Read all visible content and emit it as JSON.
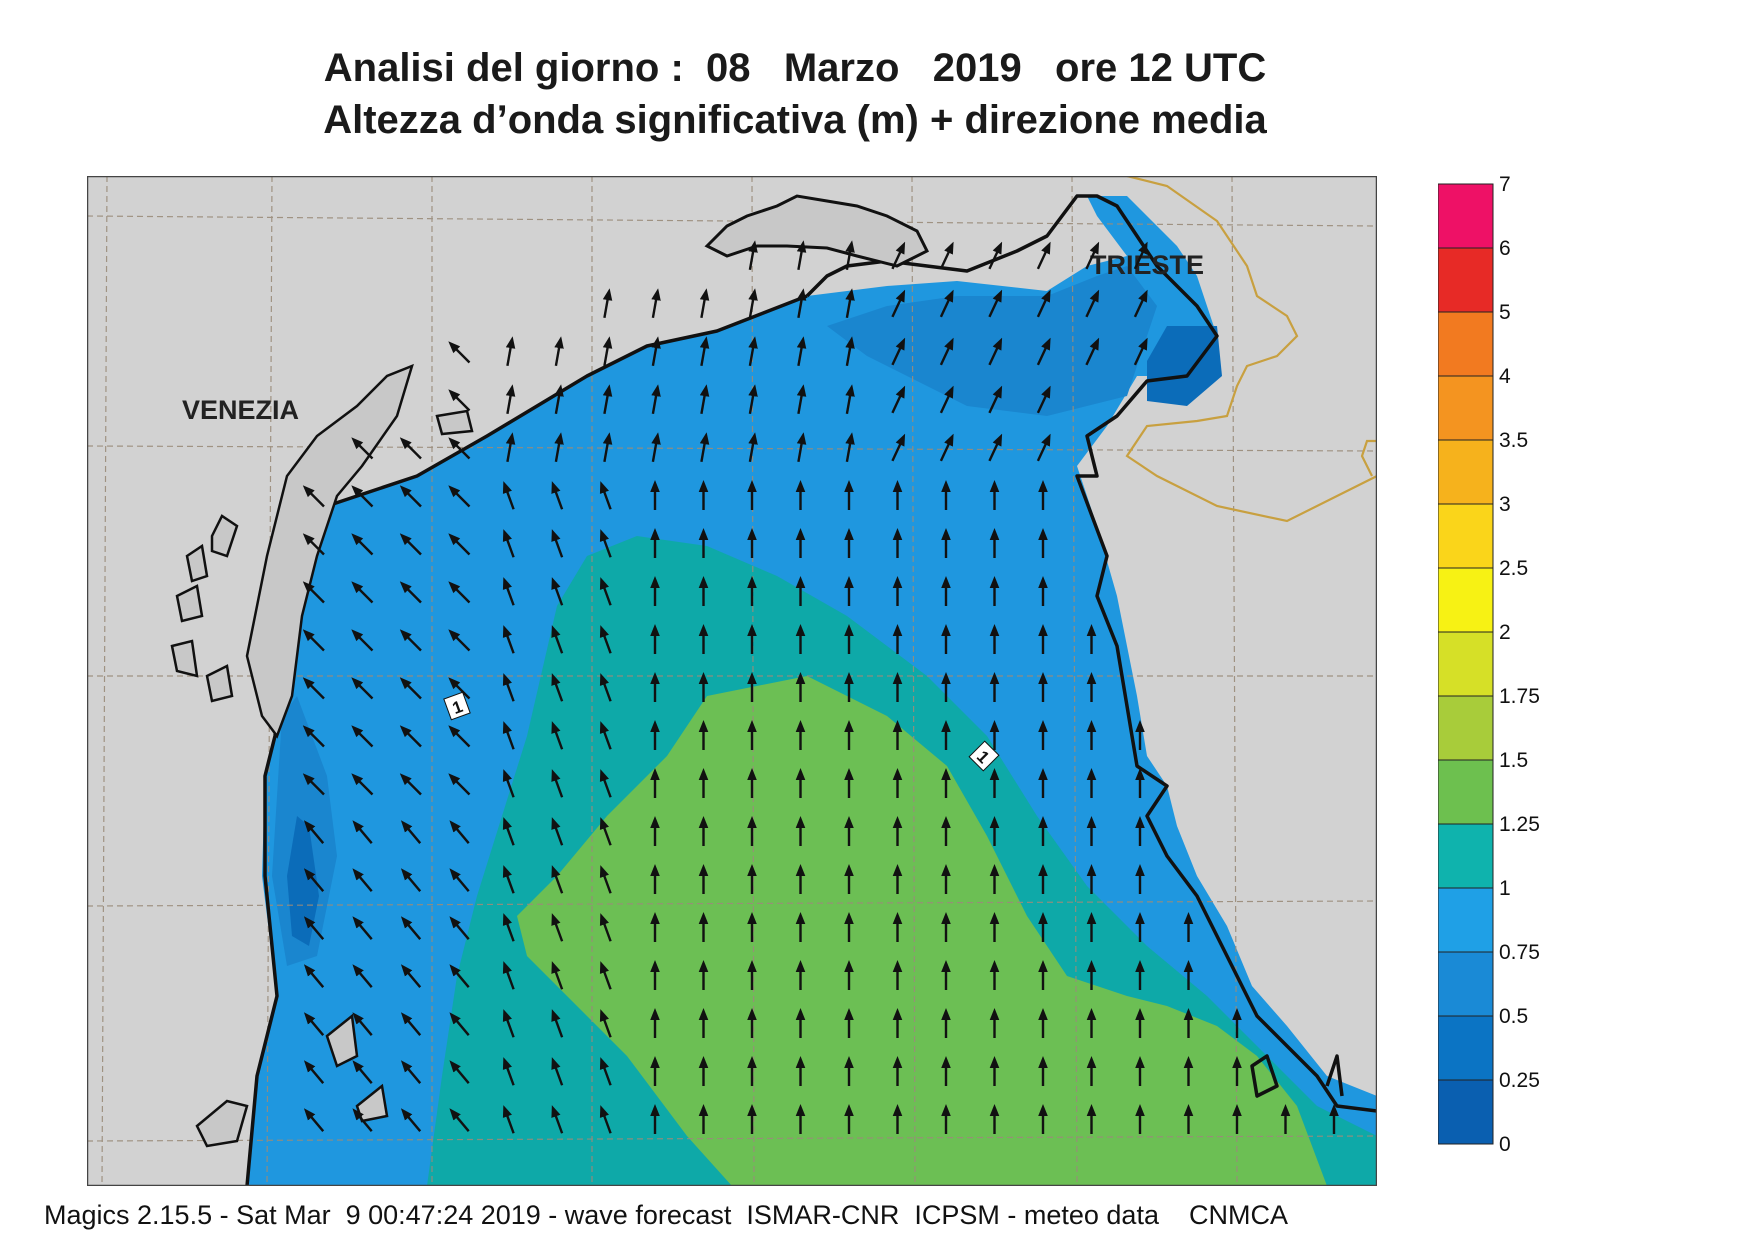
{
  "header": {
    "title_line1": "Analisi del giorno :  08   Marzo   2019   ore 12 UTC",
    "title_line2": "Altezza d’onda significativa (m) + direzione media"
  },
  "map": {
    "region": "Northern Adriatic Sea",
    "cities": [
      {
        "name": "VENEZIA"
      },
      {
        "name": "TRIESTE"
      }
    ],
    "contour_labels": [
      "1",
      "1"
    ],
    "colors": {
      "land": "#d2d2d2",
      "coastline": "#111111",
      "border": "#c8a040",
      "grid": "#a09080",
      "arrow": "#111111",
      "band_0_25": "#0869b8",
      "band_0_5": "#1a86cf",
      "band_0_75": "#1f97df",
      "band_1": "#0ea9a8",
      "band_1_25": "#6cbf54"
    },
    "arrow_direction": "north / north-west"
  },
  "legend": {
    "labels": [
      "0",
      "0.25",
      "0.5",
      "0.75",
      "1",
      "1.25",
      "1.5",
      "1.75",
      "2",
      "2.5",
      "3",
      "3.5",
      "4",
      "5",
      "6",
      "7"
    ],
    "colors": [
      "#0a5fb0",
      "#0b74c4",
      "#1a8ad6",
      "#1fa0e6",
      "#0fb3ad",
      "#6dc04f",
      "#a8cc3a",
      "#d6e027",
      "#f7f214",
      "#fad51a",
      "#f6b21c",
      "#f49420",
      "#f27a20",
      "#e72a26",
      "#ee1166"
    ]
  },
  "footer": {
    "text": "Magics 2.15.5 - Sat Mar  9 00:47:24 2019 - wave forecast  ISMAR-CNR  ICPSM - meteo data    CNMCA"
  }
}
